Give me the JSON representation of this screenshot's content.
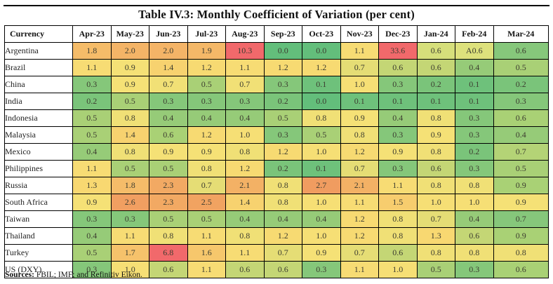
{
  "title": "Table IV.3: Monthly Coefficient of Variation (per cent)",
  "footer": {
    "label": "Sources:",
    "text": " FBIL; IMF; and Refinitiv Eikon."
  },
  "table": {
    "header": [
      "Currency",
      "Apr-23",
      "May-23",
      "Jun-23",
      "Jul-23",
      "Aug-23",
      "Sep-23",
      "Oct-23",
      "Nov-23",
      "Dec-23",
      "Jan-24",
      "Feb-24",
      "Mar-24"
    ],
    "rows": [
      {
        "currency": "Argentina",
        "values": [
          "1.8",
          "2.0",
          "2.0",
          "1.9",
          "10.3",
          "0.0",
          "0.0",
          "1.1",
          "33.6",
          "0.6",
          "A0.6",
          "0.6"
        ]
      },
      {
        "currency": "Brazil",
        "values": [
          "1.1",
          "0.9",
          "1.4",
          "1.2",
          "1.1",
          "1.2",
          "1.2",
          "0.7",
          "0.6",
          "0.6",
          "0.4",
          "0.5"
        ]
      },
      {
        "currency": "China",
        "values": [
          "0.3",
          "0.9",
          "0.7",
          "0.5",
          "0.7",
          "0.3",
          "0.1",
          "1.0",
          "0.3",
          "0.2",
          "0.1",
          "0.2"
        ]
      },
      {
        "currency": "India",
        "values": [
          "0.2",
          "0.5",
          "0.3",
          "0.3",
          "0.3",
          "0.2",
          "0.0",
          "0.1",
          "0.1",
          "0.1",
          "0.1",
          "0.3"
        ]
      },
      {
        "currency": "Indonesia",
        "values": [
          "0.5",
          "0.8",
          "0.4",
          "0.4",
          "0.4",
          "0.5",
          "0.8",
          "0.9",
          "0.4",
          "0.8",
          "0.3",
          "0.6"
        ]
      },
      {
        "currency": "Malaysia",
        "values": [
          "0.5",
          "1.4",
          "0.6",
          "1.2",
          "1.0",
          "0.3",
          "0.5",
          "0.8",
          "0.3",
          "0.9",
          "0.3",
          "0.4"
        ]
      },
      {
        "currency": "Mexico",
        "values": [
          "0.4",
          "0.8",
          "0.9",
          "0.9",
          "0.8",
          "1.2",
          "1.0",
          "1.2",
          "0.9",
          "0.8",
          "0.2",
          "0.7"
        ]
      },
      {
        "currency": "Philippines",
        "values": [
          "1.1",
          "0.5",
          "0.5",
          "0.8",
          "1.2",
          "0.2",
          "0.1",
          "0.7",
          "0.3",
          "0.6",
          "0.3",
          "0.5"
        ]
      },
      {
        "currency": "Russia",
        "values": [
          "1.3",
          "1.8",
          "2.3",
          "0.7",
          "2.1",
          "0.8",
          "2.7",
          "2.1",
          "1.1",
          "0.8",
          "0.8",
          "0.9"
        ]
      },
      {
        "currency": "South Africa",
        "values": [
          "0.9",
          "2.6",
          "2.3",
          "2.5",
          "1.4",
          "0.8",
          "1.0",
          "1.1",
          "1.5",
          "1.0",
          "1.0",
          "0.9"
        ]
      },
      {
        "currency": "Taiwan",
        "values": [
          "0.3",
          "0.3",
          "0.5",
          "0.5",
          "0.4",
          "0.4",
          "0.4",
          "1.2",
          "0.8",
          "0.7",
          "0.4",
          "0.7"
        ]
      },
      {
        "currency": "Thailand",
        "values": [
          "0.4",
          "1.1",
          "0.8",
          "1.1",
          "0.8",
          "1.2",
          "1.0",
          "1.2",
          "0.8",
          "1.3",
          "0.6",
          "0.9"
        ]
      },
      {
        "currency": "Turkey",
        "values": [
          "0.5",
          "1.7",
          "6.8",
          "1.6",
          "1.1",
          "0.7",
          "0.9",
          "0.7",
          "0.6",
          "0.8",
          "0.8",
          "0.8"
        ]
      },
      {
        "currency": "US (DXY)",
        "values": [
          "0.3",
          "1.0",
          "0.6",
          "1.1",
          "0.6",
          "0.6",
          "0.3",
          "1.1",
          "1.0",
          "0.5",
          "0.3",
          "0.6"
        ]
      }
    ]
  },
  "heatmap": {
    "legend": "green = low volatility, yellow = mid, red = high",
    "scale_stops": [
      [
        0,
        "#63BE7B"
      ],
      [
        0.3,
        "#85C77A"
      ],
      [
        0.45,
        "#9ECD77"
      ],
      [
        0.55,
        "#B3D375"
      ],
      [
        0.7,
        "#E5DD75"
      ],
      [
        0.85,
        "#F5E277"
      ],
      [
        1.3,
        "#F8D871"
      ],
      [
        1.8,
        "#F5BC69"
      ],
      [
        2.3,
        "#F2A963"
      ],
      [
        2.8,
        "#F0995F"
      ],
      [
        6.8,
        "#F1696B"
      ]
    ],
    "max_color": "#F1696B",
    "fallback_color": "#F7E377",
    "overrides": {
      "Argentina|Jan-24": "#D6DF7B",
      "Argentina|Feb-24": "#DDE17C",
      "Argentina|Mar-24": "#86C77B",
      "China|Jun-23": "#F1E076",
      "China|Aug-23": "#F1E076",
      "Malaysia|Jun-23": "#A9D175",
      "Indonesia|Mar-24": "#A9D175",
      "Mexico|Mar-24": "#B4D376",
      "Russia|Mar-24": "#A9D175",
      "Taiwan|Mar-24": "#86C77B",
      "Thailand|Mar-24": "#A9D175",
      "US (DXY)|Mar-24": "#A9D175"
    }
  }
}
